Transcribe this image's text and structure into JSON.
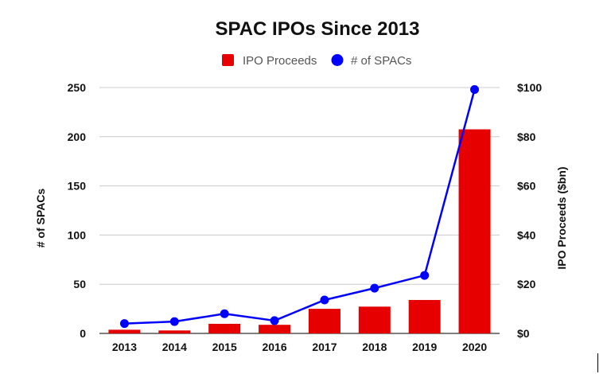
{
  "chart_data": {
    "type": "bar",
    "title": "SPAC IPOs Since 2013",
    "categories": [
      "2013",
      "2014",
      "2015",
      "2016",
      "2017",
      "2018",
      "2019",
      "2020"
    ],
    "series": [
      {
        "name": "IPO Proceeds",
        "type": "bar",
        "axis": "right",
        "color": "#e60000",
        "values": [
          1.5,
          1.2,
          3.9,
          3.5,
          10.0,
          10.9,
          13.6,
          83.0
        ]
      },
      {
        "name": "# of SPACs",
        "type": "line",
        "axis": "left",
        "color": "#0000ff",
        "values": [
          10,
          12,
          20,
          13,
          34,
          46,
          59,
          248
        ]
      }
    ],
    "y_left": {
      "label": "# of SPACs",
      "range": [
        0,
        250
      ],
      "ticks": [
        "0",
        "50",
        "100",
        "150",
        "200",
        "250"
      ]
    },
    "y_right": {
      "label": "IPO Proceeds ($bn)",
      "range": [
        0,
        100
      ],
      "ticks": [
        "$0",
        "$20",
        "$40",
        "$60",
        "$80",
        "$100"
      ]
    },
    "legend": {
      "position": "top",
      "entries": [
        "IPO Proceeds",
        "# of SPACs"
      ]
    },
    "grid": true
  }
}
